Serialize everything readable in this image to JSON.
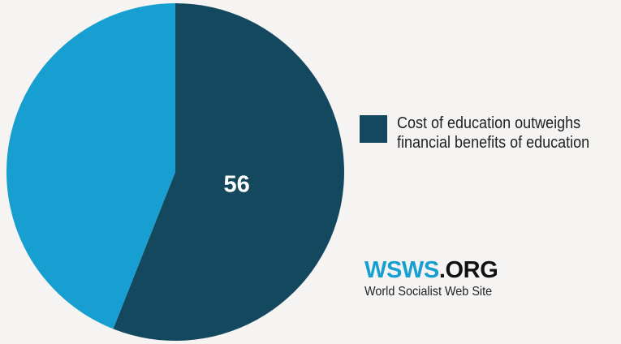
{
  "chart_data": {
    "type": "pie",
    "slices": [
      {
        "label": "Cost of education outweighs financial benefits of education",
        "value": 56,
        "value_label": "56",
        "color": "#13485e",
        "legend": true
      },
      {
        "value": 44,
        "color": "#189fd1",
        "legend": false
      }
    ],
    "start_angle_deg": 0,
    "direction": "clockwise",
    "legend_position": "right"
  },
  "legend": {
    "text": "Cost of education outweighs financial benefits of education",
    "color": "#13485e"
  },
  "branding": {
    "logo_main": "WSWS",
    "logo_suffix": ".ORG",
    "logo_main_color": "#189fd1",
    "logo_suffix_color": "#111111",
    "subtitle": "World Socialist Web Site"
  }
}
